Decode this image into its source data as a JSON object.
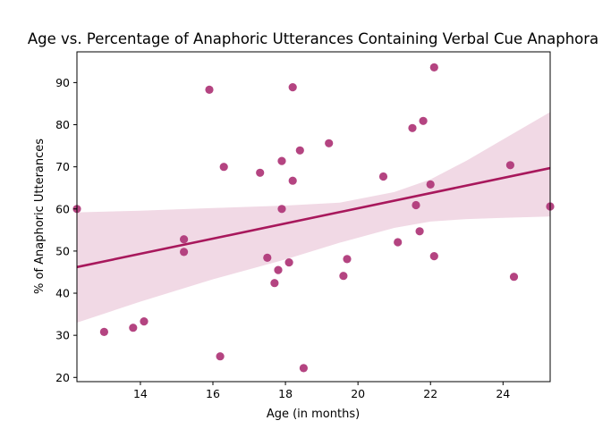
{
  "chart_data": {
    "type": "scatter",
    "title": "Age vs. Percentage of Anaphoric Utterances Containing Verbal Cue Anaphora",
    "xlabel": "Age (in months)",
    "ylabel": "% of Anaphoric Utterances",
    "xlim": [
      12.25,
      25.3
    ],
    "ylim": [
      19,
      97.3
    ],
    "xticks": [
      14,
      16,
      18,
      20,
      22,
      24
    ],
    "yticks": [
      20,
      30,
      40,
      50,
      60,
      70,
      80,
      90
    ],
    "grid": false,
    "colors": {
      "points": "#b03a7a",
      "line": "#a8185c",
      "band": "#f1d9e5"
    },
    "points": [
      {
        "x": 12.25,
        "y": 60.0
      },
      {
        "x": 13.0,
        "y": 30.8
      },
      {
        "x": 13.8,
        "y": 31.8
      },
      {
        "x": 14.1,
        "y": 33.3
      },
      {
        "x": 15.2,
        "y": 52.8
      },
      {
        "x": 15.2,
        "y": 49.8
      },
      {
        "x": 15.9,
        "y": 88.3
      },
      {
        "x": 16.2,
        "y": 25.0
      },
      {
        "x": 16.3,
        "y": 70.0
      },
      {
        "x": 17.3,
        "y": 68.6
      },
      {
        "x": 17.5,
        "y": 48.4
      },
      {
        "x": 17.7,
        "y": 42.4
      },
      {
        "x": 17.8,
        "y": 45.5
      },
      {
        "x": 17.9,
        "y": 71.4
      },
      {
        "x": 17.9,
        "y": 60.0
      },
      {
        "x": 18.1,
        "y": 47.3
      },
      {
        "x": 18.2,
        "y": 88.9
      },
      {
        "x": 18.2,
        "y": 66.7
      },
      {
        "x": 18.4,
        "y": 73.9
      },
      {
        "x": 18.5,
        "y": 22.2
      },
      {
        "x": 19.2,
        "y": 75.6
      },
      {
        "x": 19.6,
        "y": 44.1
      },
      {
        "x": 19.7,
        "y": 48.1
      },
      {
        "x": 20.7,
        "y": 67.7
      },
      {
        "x": 21.1,
        "y": 52.1
      },
      {
        "x": 21.5,
        "y": 79.2
      },
      {
        "x": 21.6,
        "y": 60.9
      },
      {
        "x": 21.7,
        "y": 54.7
      },
      {
        "x": 21.8,
        "y": 80.9
      },
      {
        "x": 22.0,
        "y": 65.8
      },
      {
        "x": 22.1,
        "y": 93.6
      },
      {
        "x": 22.1,
        "y": 48.8
      },
      {
        "x": 24.2,
        "y": 70.4
      },
      {
        "x": 24.3,
        "y": 43.9
      },
      {
        "x": 25.3,
        "y": 60.6
      }
    ],
    "regression": {
      "x": [
        12.25,
        25.3
      ],
      "y": [
        46.2,
        69.7
      ]
    },
    "confidence_band": {
      "x": [
        12.25,
        14.0,
        16.0,
        18.0,
        19.5,
        21.0,
        22.0,
        23.0,
        24.0,
        25.3
      ],
      "upper": [
        59.2,
        59.6,
        60.2,
        60.8,
        61.5,
        64.0,
        67.0,
        71.5,
        76.5,
        83.0
      ],
      "lower": [
        33.0,
        38.0,
        43.3,
        48.0,
        52.0,
        55.5,
        57.0,
        57.6,
        57.9,
        58.2
      ]
    }
  }
}
